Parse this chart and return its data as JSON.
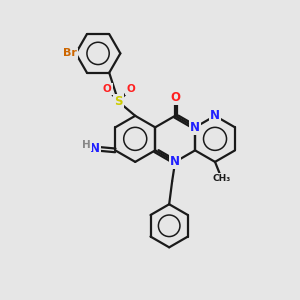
{
  "background_color": "#e6e6e6",
  "bond_color": "#1a1a1a",
  "bond_width": 1.6,
  "atom_colors": {
    "N": "#2020ff",
    "O": "#ff2020",
    "S": "#cccc00",
    "Br": "#cc6600",
    "H": "#888888",
    "C": "#1a1a1a"
  },
  "font_size": 8.0
}
